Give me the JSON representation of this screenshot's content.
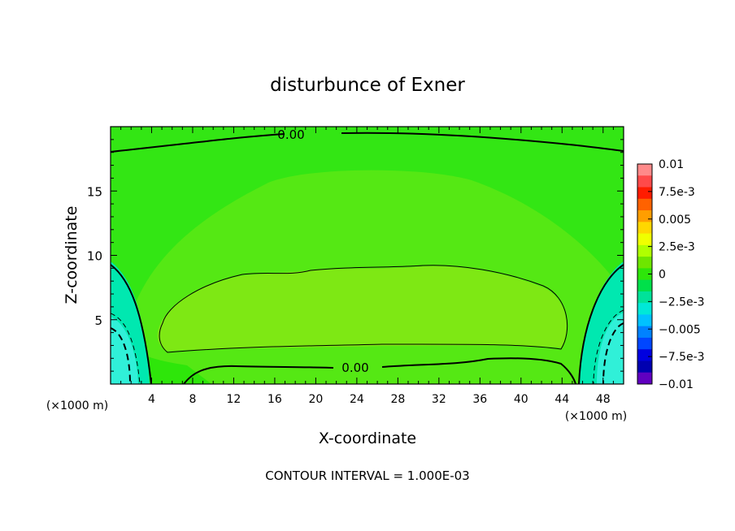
{
  "chart_data": {
    "type": "heatmap",
    "title": "disturbunce of Exner",
    "xlabel": "X-coordinate",
    "ylabel": "Z-coordinate",
    "x_unit_left": "(×1000 m)",
    "x_unit_right": "(×1000 m)",
    "xlim": [
      0,
      50
    ],
    "ylim": [
      0,
      20
    ],
    "x_ticks": [
      4,
      8,
      12,
      16,
      20,
      24,
      28,
      32,
      36,
      40,
      44,
      48
    ],
    "y_ticks": [
      5,
      10,
      15
    ],
    "contour_labels": [
      "0.00",
      "0.00"
    ],
    "footer": "CONTOUR INTERVAL = 1.000E-03",
    "colorbar": {
      "tick_labels": [
        "0.01",
        "7.5e-3",
        "0.005",
        "2.5e-3",
        "0",
        "−2.5e-3",
        "−0.005",
        "−7.5e-3",
        "−0.01"
      ],
      "colors": [
        "#ff8a8a",
        "#ff4a4a",
        "#ff1c00",
        "#ff6200",
        "#ff9e00",
        "#ffd700",
        "#f0ff00",
        "#b0ff00",
        "#6ee600",
        "#2ee60a",
        "#00e04a",
        "#00e29a",
        "#00e8d8",
        "#00c2ff",
        "#0082ff",
        "#0046ff",
        "#0000e0",
        "#0000b0",
        "#6000c0"
      ]
    },
    "fill_colors": {
      "background": "#33e614",
      "interior": "#55e814",
      "core": "#7ee814",
      "cold_side": "#00e8b0",
      "cold_core": "#30f0d8"
    }
  }
}
